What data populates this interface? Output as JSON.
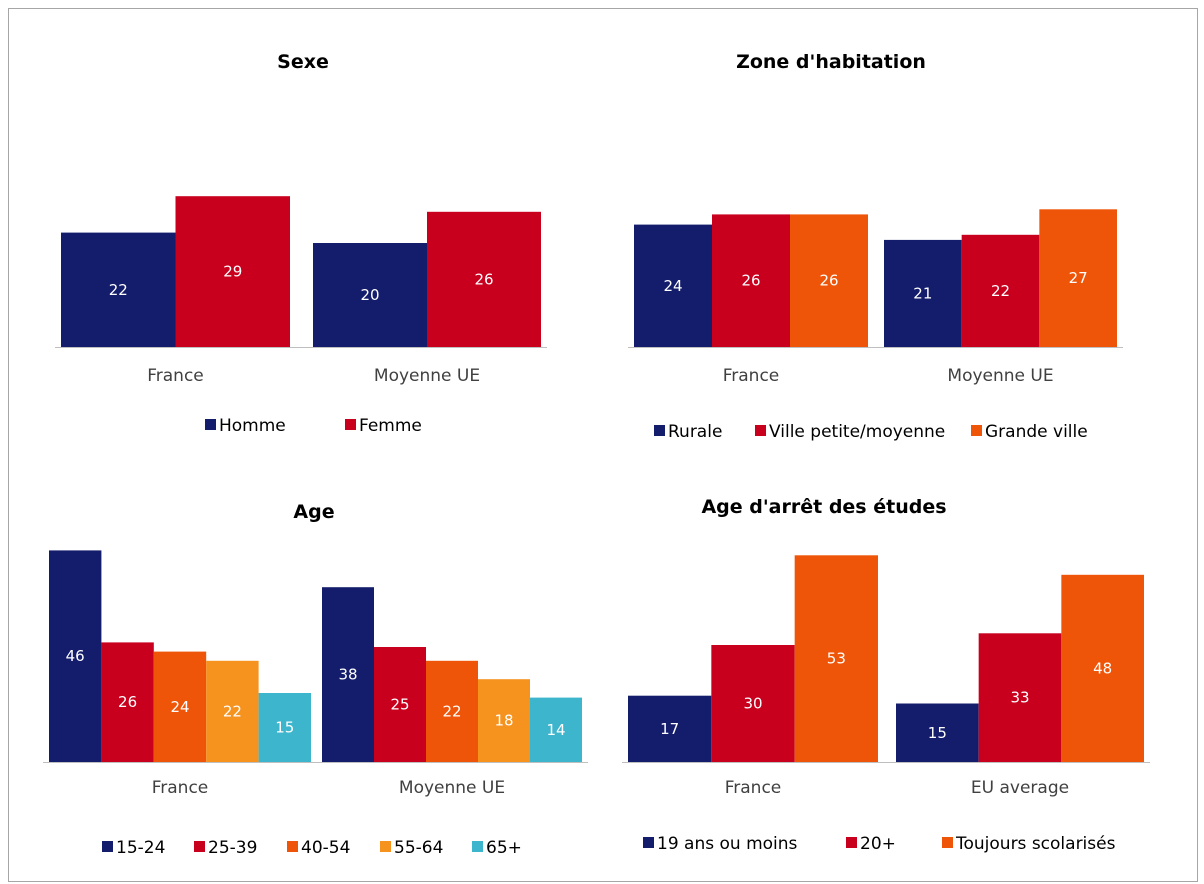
{
  "colors": {
    "navy": "#141d6b",
    "red": "#c8001e",
    "orange": "#ef5509",
    "light_orange": "#f6921e",
    "cyan": "#3db5cc"
  },
  "chart_data": [
    {
      "type": "bar",
      "title": "Sexe",
      "categories": [
        "France",
        "Moyenne UE"
      ],
      "series": [
        {
          "name": "Homme",
          "values": [
            22,
            20
          ],
          "color": "#141d6b"
        },
        {
          "name": "Femme",
          "values": [
            29,
            26
          ],
          "color": "#c8001e"
        }
      ],
      "ylim": [
        0,
        40
      ],
      "legend": "bottom"
    },
    {
      "type": "bar",
      "title": "Zone d'habitation",
      "categories": [
        "France",
        "Moyenne UE"
      ],
      "series": [
        {
          "name": "Rurale",
          "values": [
            24,
            21
          ],
          "color": "#141d6b"
        },
        {
          "name": "Ville petite/moyenne",
          "values": [
            26,
            22
          ],
          "color": "#c8001e"
        },
        {
          "name": "Grande ville",
          "values": [
            26,
            27
          ],
          "color": "#ef5509"
        }
      ],
      "ylim": [
        0,
        40
      ],
      "legend": "bottom"
    },
    {
      "type": "bar",
      "title": "Age",
      "categories": [
        "France",
        "Moyenne UE"
      ],
      "series": [
        {
          "name": "15-24",
          "values": [
            46,
            38
          ],
          "color": "#141d6b"
        },
        {
          "name": "25-39",
          "values": [
            26,
            25
          ],
          "color": "#c8001e"
        },
        {
          "name": "40-54",
          "values": [
            24,
            22
          ],
          "color": "#ef5509"
        },
        {
          "name": "55-64",
          "values": [
            22,
            18
          ],
          "color": "#f6921e"
        },
        {
          "name": "65+",
          "values": [
            15,
            14
          ],
          "color": "#3db5cc"
        }
      ],
      "ylim": [
        0,
        46
      ],
      "legend": "bottom"
    },
    {
      "type": "bar",
      "title": "Age d'arrêt des études",
      "categories": [
        "France",
        "EU average"
      ],
      "series": [
        {
          "name": "19 ans ou moins",
          "values": [
            17,
            15
          ],
          "color": "#141d6b"
        },
        {
          "name": "20+",
          "values": [
            30,
            33
          ],
          "color": "#c8001e"
        },
        {
          "name": "Toujours scolarisés",
          "values": [
            53,
            48
          ],
          "color": "#ef5509"
        }
      ],
      "ylim": [
        0,
        53
      ],
      "legend": "bottom"
    }
  ]
}
